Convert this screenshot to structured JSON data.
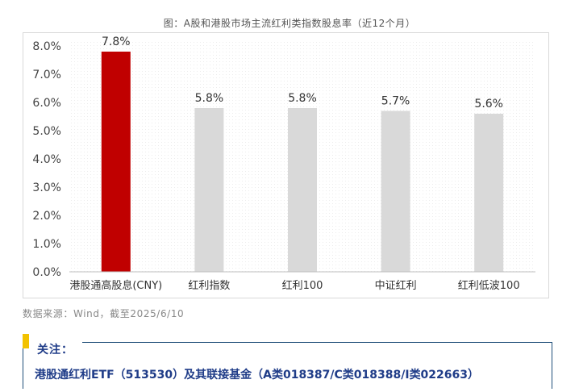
{
  "chart_title": "图：A股和港股市场主流红利类指数股息率（近12个月）",
  "source_note": "数据来源：Wind，截至2025/6/10",
  "notice": {
    "label": "关注：",
    "text": "港股通红利ETF（513530）及其联接基金（A类018387/C类018388/I类022663）",
    "accent_color": "#f2c200",
    "text_color": "#1f3c88"
  },
  "chart_data": {
    "type": "bar",
    "title": "图：A股和港股市场主流红利类指数股息率（近12个月）",
    "categories": [
      "港股通高股息(CNY)",
      "红利指数",
      "红利100",
      "中证红利",
      "红利低波100"
    ],
    "values": [
      7.8,
      5.8,
      5.8,
      5.7,
      5.6
    ],
    "data_labels": [
      "7.8%",
      "5.8%",
      "5.8%",
      "5.7%",
      "5.6%"
    ],
    "highlight_index": 0,
    "colors": {
      "highlight": "#c00000",
      "default": "#d9d9d9"
    },
    "ylim": [
      0,
      8
    ],
    "yticks": [
      "0.0%",
      "1.0%",
      "2.0%",
      "3.0%",
      "4.0%",
      "5.0%",
      "6.0%",
      "7.0%",
      "8.0%"
    ],
    "grid": true,
    "xlabel": "",
    "ylabel": ""
  }
}
